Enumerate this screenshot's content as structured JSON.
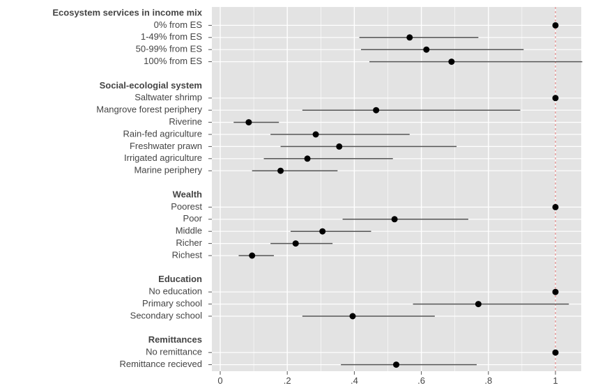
{
  "chart_data": {
    "type": "scatter",
    "title": "",
    "xlabel": "",
    "ylabel": "",
    "xlim": [
      0,
      1.08
    ],
    "x_ticks": [
      0,
      0.2,
      0.4,
      0.6,
      0.8,
      1.0
    ],
    "x_tick_labels": [
      "0",
      ".2",
      ".4",
      ".6",
      ".8",
      "1"
    ],
    "reference_line": 1.0,
    "grid": true,
    "point_color": "#000000",
    "ci_color": "#555555",
    "reference_color": "#e07070",
    "panel_color": "#e3e3e3",
    "groups": [
      {
        "label": "Ecosystem services in income mix",
        "rows": [
          {
            "label": "0% from ES",
            "estimate": 1.0,
            "ci_low": null,
            "ci_high": null
          },
          {
            "label": "1-49% from ES",
            "estimate": 0.565,
            "ci_low": 0.415,
            "ci_high": 0.77
          },
          {
            "label": "50-99% from ES",
            "estimate": 0.615,
            "ci_low": 0.42,
            "ci_high": 0.905
          },
          {
            "label": "100% from ES",
            "estimate": 0.69,
            "ci_low": 0.445,
            "ci_high": 1.08
          }
        ]
      },
      {
        "label": "Social-ecologial system",
        "rows": [
          {
            "label": "Saltwater shrimp",
            "estimate": 1.0,
            "ci_low": null,
            "ci_high": null
          },
          {
            "label": "Mangrove forest periphery",
            "estimate": 0.465,
            "ci_low": 0.245,
            "ci_high": 0.895
          },
          {
            "label": "Riverine",
            "estimate": 0.085,
            "ci_low": 0.04,
            "ci_high": 0.175
          },
          {
            "label": "Rain-fed agriculture",
            "estimate": 0.285,
            "ci_low": 0.15,
            "ci_high": 0.565
          },
          {
            "label": "Freshwater prawn",
            "estimate": 0.355,
            "ci_low": 0.18,
            "ci_high": 0.705
          },
          {
            "label": "Irrigated agriculture",
            "estimate": 0.26,
            "ci_low": 0.13,
            "ci_high": 0.515
          },
          {
            "label": "Marine periphery",
            "estimate": 0.18,
            "ci_low": 0.095,
            "ci_high": 0.35
          }
        ]
      },
      {
        "label": "Wealth",
        "rows": [
          {
            "label": "Poorest",
            "estimate": 1.0,
            "ci_low": null,
            "ci_high": null
          },
          {
            "label": "Poor",
            "estimate": 0.52,
            "ci_low": 0.365,
            "ci_high": 0.74
          },
          {
            "label": "Middle",
            "estimate": 0.305,
            "ci_low": 0.21,
            "ci_high": 0.45
          },
          {
            "label": "Richer",
            "estimate": 0.225,
            "ci_low": 0.15,
            "ci_high": 0.335
          },
          {
            "label": "Richest",
            "estimate": 0.095,
            "ci_low": 0.055,
            "ci_high": 0.16
          }
        ]
      },
      {
        "label": "Education",
        "rows": [
          {
            "label": "No education",
            "estimate": 1.0,
            "ci_low": null,
            "ci_high": null
          },
          {
            "label": "Primary school",
            "estimate": 0.77,
            "ci_low": 0.575,
            "ci_high": 1.04
          },
          {
            "label": "Secondary school",
            "estimate": 0.395,
            "ci_low": 0.245,
            "ci_high": 0.64
          }
        ]
      },
      {
        "label": "Remittances",
        "rows": [
          {
            "label": "No remittance",
            "estimate": 1.0,
            "ci_low": null,
            "ci_high": null
          },
          {
            "label": "Remittance recieved",
            "estimate": 0.525,
            "ci_low": 0.36,
            "ci_high": 0.765
          }
        ]
      }
    ]
  }
}
